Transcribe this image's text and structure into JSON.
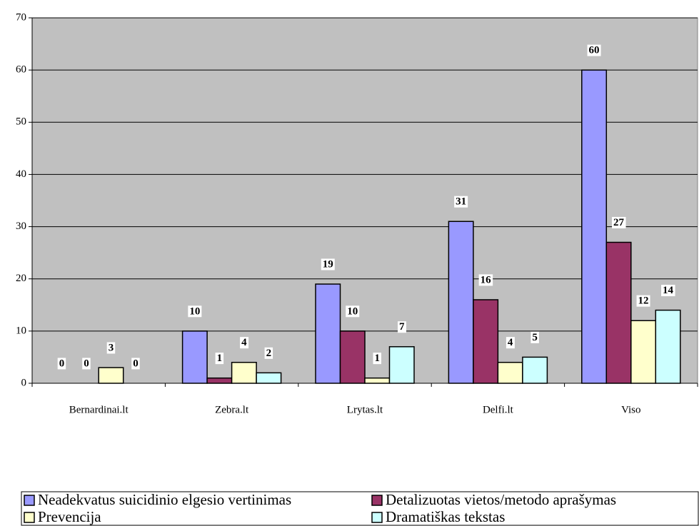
{
  "chart_data": {
    "type": "bar",
    "categories": [
      "Bernardinai.lt",
      "Zebra.lt",
      "Lrytas.lt",
      "Delfi.lt",
      "Viso"
    ],
    "series": [
      {
        "name": "Neadekvatus suicidinio elgesio vertinimas",
        "color": "#9999ff",
        "values": [
          0,
          10,
          19,
          31,
          60
        ]
      },
      {
        "name": "Detalizuotas vietos/metodo aprašymas",
        "color": "#993366",
        "values": [
          0,
          1,
          10,
          16,
          27
        ]
      },
      {
        "name": "Prevencija",
        "color": "#ffffcc",
        "values": [
          3,
          4,
          1,
          4,
          12
        ]
      },
      {
        "name": "Dramatiškas tekstas",
        "color": "#ccffff",
        "values": [
          0,
          2,
          7,
          5,
          14
        ]
      }
    ],
    "ylim": [
      0,
      70
    ],
    "yticks": [
      0,
      10,
      20,
      30,
      40,
      50,
      60,
      70
    ],
    "grid": true,
    "legend": "bottom",
    "plot_background": "#c0c0c0"
  }
}
